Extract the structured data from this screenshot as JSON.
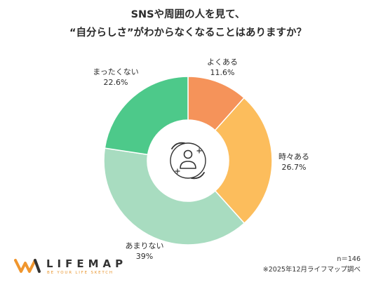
{
  "chart_data": {
    "type": "pie",
    "title_lines": [
      "SNSや周囲の人を見て、",
      "“自分らしさ”がわからなくなることはありますか？"
    ],
    "slices": [
      {
        "label": "よくある",
        "value": 11.6,
        "value_label": "11.6%",
        "color": "#f5935a"
      },
      {
        "label": "時々ある",
        "value": 26.7,
        "value_label": "26.7%",
        "color": "#fcbd5c"
      },
      {
        "label": "あまりない",
        "value": 39,
        "value_label": "39%",
        "color": "#a8dcc0"
      },
      {
        "label": "まったくない",
        "value": 22.6,
        "value_label": "22.6%",
        "color": "#4dc98a"
      }
    ]
  },
  "footer": {
    "sample_size": "n＝146",
    "survey_note": "※2025年12月ライフマップ調べ"
  },
  "brand": {
    "name": "LIFEMAP",
    "tagline": "BE YOUR LIFE SKETCH",
    "colors": {
      "orange": "#f0962e",
      "dark": "#333333"
    }
  }
}
